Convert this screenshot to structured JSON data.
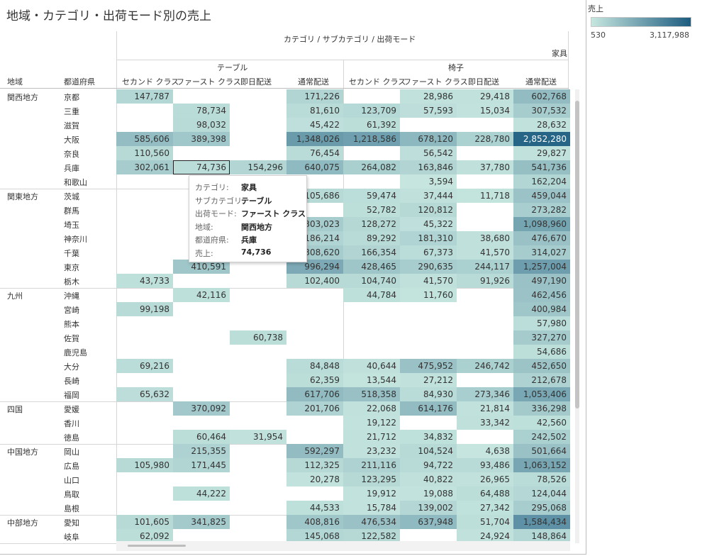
{
  "title": "地域・カテゴリ・出荷モード別の売上",
  "header": {
    "dimension_path": "カテゴリ / サブカテゴリ / 出荷モード",
    "category": "家具",
    "subcategories": [
      "テーブル",
      "椅子"
    ],
    "row_headers": [
      "地域",
      "都道府県"
    ],
    "ship_modes": [
      "セカンド クラス",
      "ファースト クラス",
      "即日配送",
      "通常配送",
      "セカンド クラス",
      "ファースト クラス",
      "即日配送",
      "通常配送"
    ]
  },
  "legend": {
    "title": "売上",
    "min": "530",
    "max": "3,117,988",
    "min_value": 530,
    "max_value": 3117988,
    "color_low": "#c6e6df",
    "color_high": "#1d5c80"
  },
  "tooltip": {
    "rows": [
      {
        "key": "カテゴリ:",
        "val": "家具"
      },
      {
        "key": "サブカテゴリ:",
        "val": "テーブル"
      },
      {
        "key": "出荷モード:",
        "val": "ファースト クラス"
      },
      {
        "key": "地域:",
        "val": "関西地方"
      },
      {
        "key": "都道府県:",
        "val": "兵庫"
      },
      {
        "key": "売上:",
        "val": "74,736"
      }
    ]
  },
  "regions": [
    {
      "name": "関西地方",
      "rows": [
        {
          "pref": "京都",
          "cells": [
            "147,787",
            "",
            "",
            "171,226",
            "",
            "28,986",
            "29,418",
            "602,768"
          ]
        },
        {
          "pref": "三重",
          "cells": [
            "",
            "78,734",
            "",
            "81,610",
            "123,709",
            "57,593",
            "15,034",
            "307,532"
          ]
        },
        {
          "pref": "滋賀",
          "cells": [
            "",
            "98,032",
            "",
            "45,422",
            "61,392",
            "",
            "",
            "28,632"
          ]
        },
        {
          "pref": "大阪",
          "cells": [
            "585,606",
            "389,398",
            "",
            "1,348,026",
            "1,218,586",
            "678,120",
            "228,780",
            "2,852,280"
          ]
        },
        {
          "pref": "奈良",
          "cells": [
            "110,560",
            "",
            "",
            "76,454",
            "",
            "56,542",
            "",
            "29,827"
          ]
        },
        {
          "pref": "兵庫",
          "cells": [
            "302,061",
            "74,736",
            "154,296",
            "640,075",
            "264,082",
            "163,846",
            "37,780",
            "541,736"
          ]
        },
        {
          "pref": "和歌山",
          "cells": [
            "",
            "",
            "",
            "",
            "",
            "3,594",
            "",
            "162,204"
          ]
        }
      ]
    },
    {
      "name": "関東地方",
      "rows": [
        {
          "pref": "茨城",
          "cells": [
            "",
            "",
            "",
            "105,686",
            "59,474",
            "37,444",
            "11,718",
            "459,044"
          ]
        },
        {
          "pref": "群馬",
          "cells": [
            "",
            "",
            "",
            "",
            "52,782",
            "120,812",
            "",
            "273,282"
          ]
        },
        {
          "pref": "埼玉",
          "cells": [
            "",
            "",
            "",
            "303,023",
            "128,272",
            "45,322",
            "",
            "1,098,960"
          ]
        },
        {
          "pref": "神奈川",
          "cells": [
            "",
            "",
            "",
            "186,214",
            "89,292",
            "181,310",
            "38,680",
            "476,670"
          ]
        },
        {
          "pref": "千葉",
          "cells": [
            "",
            "",
            "",
            "308,620",
            "166,354",
            "67,373",
            "41,570",
            "314,027"
          ]
        },
        {
          "pref": "東京",
          "cells": [
            "",
            "410,591",
            "",
            "996,294",
            "428,465",
            "290,635",
            "244,117",
            "1,257,004"
          ]
        },
        {
          "pref": "栃木",
          "cells": [
            "43,733",
            "",
            "",
            "102,400",
            "104,740",
            "41,570",
            "91,926",
            "497,190"
          ]
        }
      ]
    },
    {
      "name": "九州",
      "rows": [
        {
          "pref": "沖縄",
          "cells": [
            "",
            "42,116",
            "",
            "",
            "44,784",
            "11,760",
            "",
            "462,456"
          ]
        },
        {
          "pref": "宮崎",
          "cells": [
            "99,198",
            "",
            "",
            "",
            "",
            "",
            "",
            "400,984"
          ]
        },
        {
          "pref": "熊本",
          "cells": [
            "",
            "",
            "",
            "",
            "",
            "",
            "",
            "57,980"
          ]
        },
        {
          "pref": "佐賀",
          "cells": [
            "",
            "",
            "60,738",
            "",
            "",
            "",
            "",
            "327,270"
          ]
        },
        {
          "pref": "鹿児島",
          "cells": [
            "",
            "",
            "",
            "",
            "",
            "",
            "",
            "54,686"
          ]
        },
        {
          "pref": "大分",
          "cells": [
            "69,216",
            "",
            "",
            "84,848",
            "40,644",
            "475,952",
            "246,742",
            "452,650"
          ]
        },
        {
          "pref": "長崎",
          "cells": [
            "",
            "",
            "",
            "62,359",
            "13,544",
            "27,212",
            "",
            "212,678"
          ]
        },
        {
          "pref": "福岡",
          "cells": [
            "65,632",
            "",
            "",
            "617,706",
            "518,358",
            "84,930",
            "273,346",
            "1,053,406"
          ]
        }
      ]
    },
    {
      "name": "四国",
      "rows": [
        {
          "pref": "愛媛",
          "cells": [
            "",
            "370,092",
            "",
            "201,706",
            "22,068",
            "614,176",
            "21,814",
            "336,298"
          ]
        },
        {
          "pref": "香川",
          "cells": [
            "",
            "",
            "",
            "",
            "19,122",
            "",
            "33,342",
            "42,560"
          ]
        },
        {
          "pref": "徳島",
          "cells": [
            "",
            "60,464",
            "31,954",
            "",
            "21,712",
            "34,832",
            "",
            "242,502"
          ]
        }
      ]
    },
    {
      "name": "中国地方",
      "rows": [
        {
          "pref": "岡山",
          "cells": [
            "",
            "215,355",
            "",
            "592,297",
            "23,232",
            "104,524",
            "4,638",
            "501,664"
          ]
        },
        {
          "pref": "広島",
          "cells": [
            "105,980",
            "171,445",
            "",
            "112,325",
            "211,116",
            "94,722",
            "93,486",
            "1,063,152"
          ]
        },
        {
          "pref": "山口",
          "cells": [
            "",
            "",
            "",
            "20,278",
            "123,295",
            "40,822",
            "26,965",
            "78,526"
          ]
        },
        {
          "pref": "鳥取",
          "cells": [
            "",
            "44,222",
            "",
            "",
            "19,912",
            "19,088",
            "64,488",
            "124,044"
          ]
        },
        {
          "pref": "島根",
          "cells": [
            "",
            "",
            "",
            "44,533",
            "15,784",
            "139,002",
            "27,342",
            "295,068"
          ]
        }
      ]
    },
    {
      "name": "中部地方",
      "rows": [
        {
          "pref": "愛知",
          "cells": [
            "101,605",
            "341,825",
            "",
            "408,816",
            "476,534",
            "637,948",
            "51,704",
            "1,584,434"
          ]
        },
        {
          "pref": "岐阜",
          "cells": [
            "62,092",
            "",
            "",
            "145,068",
            "122,582",
            "",
            "24,924",
            "148,864"
          ]
        }
      ]
    }
  ],
  "selected_cell": {
    "region": 0,
    "row": 5,
    "col": 1
  }
}
